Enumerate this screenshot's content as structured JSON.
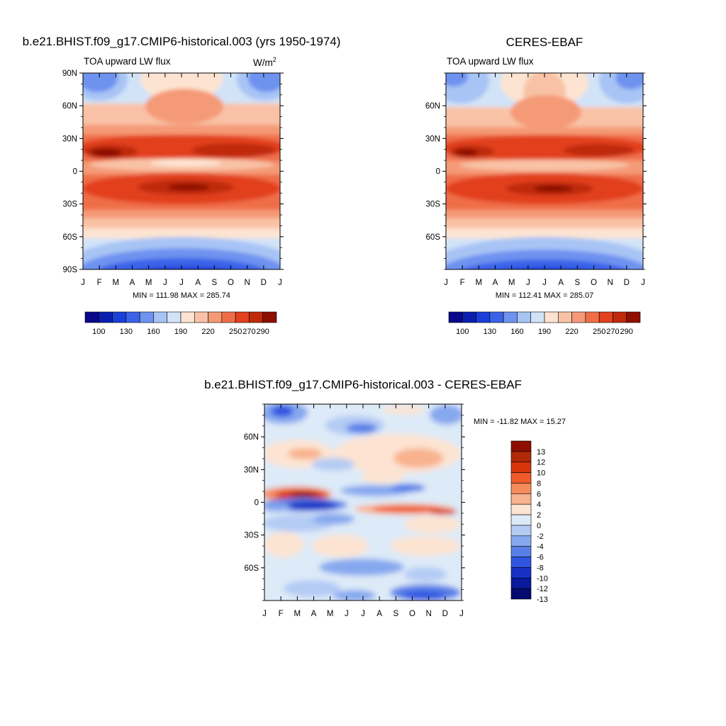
{
  "chart_data": [
    {
      "type": "heatmap",
      "title": "b.e21.BHIST.f09_g17.CMIP6-historical.003 (yrs 1950-1974)",
      "subtitle_left": "TOA upward LW flux",
      "units_base": "W/m",
      "units_exp": "2",
      "x_ticks": [
        "J",
        "F",
        "M",
        "A",
        "M",
        "J",
        "J",
        "A",
        "S",
        "O",
        "N",
        "D",
        "J"
      ],
      "y_ticks": [
        "90N",
        "60N",
        "30N",
        "0",
        "30S",
        "60S",
        "90S"
      ],
      "y_tick_values": [
        90,
        60,
        30,
        0,
        -30,
        -60,
        -90
      ],
      "ylim": [
        -90,
        90
      ],
      "stats": "MIN = 111.98 MAX = 285.74",
      "colorbar_labels": [
        "100",
        "130",
        "160",
        "190",
        "220",
        "250",
        "270",
        "290"
      ]
    },
    {
      "type": "heatmap",
      "title": "CERES-EBAF",
      "subtitle_left": "TOA upward LW flux",
      "x_ticks": [
        "J",
        "F",
        "M",
        "A",
        "M",
        "J",
        "J",
        "A",
        "S",
        "O",
        "N",
        "D",
        "J"
      ],
      "y_ticks": [
        "60N",
        "30N",
        "0",
        "30S",
        "60S"
      ],
      "y_tick_values": [
        60,
        30,
        0,
        -30,
        -60
      ],
      "ylim": [
        -90,
        90
      ],
      "stats": "MIN = 112.41 MAX = 285.07",
      "colorbar_labels": [
        "100",
        "130",
        "160",
        "190",
        "220",
        "250",
        "270",
        "290"
      ]
    },
    {
      "type": "heatmap",
      "title": "b.e21.BHIST.f09_g17.CMIP6-historical.003 - CERES-EBAF",
      "x_ticks": [
        "J",
        "F",
        "M",
        "A",
        "M",
        "J",
        "J",
        "A",
        "S",
        "O",
        "N",
        "D",
        "J"
      ],
      "y_ticks": [
        "60N",
        "30N",
        "0",
        "30S",
        "60S"
      ],
      "y_tick_values": [
        60,
        30,
        0,
        -30,
        -60
      ],
      "ylim": [
        -90,
        90
      ],
      "stats": "MIN = -11.82 MAX =  15.27",
      "colorbar_labels": [
        "13",
        "12",
        "10",
        "8",
        "6",
        "4",
        "2",
        "0",
        "-2",
        "-4",
        "-6",
        "-8",
        "-10",
        "-12",
        "-13"
      ]
    }
  ],
  "colors": {
    "abs_scale": [
      "#08088a",
      "#0a1fb0",
      "#1a3fd8",
      "#3a63e8",
      "#6e92f0",
      "#a8c4f5",
      "#d2e3f8",
      "#fde4d2",
      "#f9c2a6",
      "#f59a77",
      "#ef6e48",
      "#e2401f",
      "#bf2a0a",
      "#8e0e00"
    ],
    "diff_scale": [
      "#8e0e00",
      "#b02a0a",
      "#d8350c",
      "#ef5a2a",
      "#f58a5a",
      "#f8b28e",
      "#fde4d2",
      "#ddeaf8",
      "#b4cbf4",
      "#86a8ef",
      "#587fe8",
      "#2f55e0",
      "#1631c4",
      "#0a1a9c",
      "#050b6e"
    ]
  }
}
